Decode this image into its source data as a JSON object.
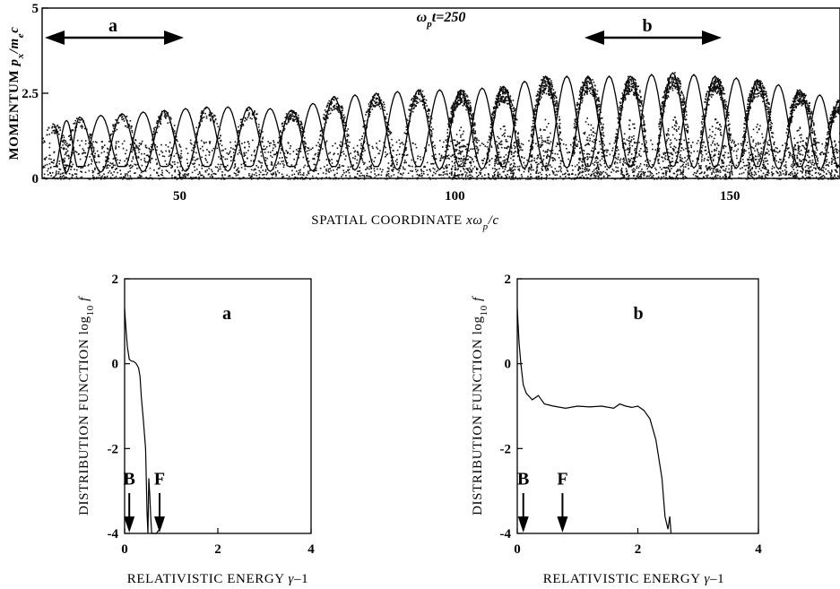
{
  "chart_data": [
    {
      "type": "scatter",
      "panel": "top",
      "annotation_time": "ω_p t=250",
      "xlabel": "SPATIAL COORDINATE xω_p/c",
      "ylabel": "MOMENTUM p_x/m_e c",
      "xlim": [
        25,
        170
      ],
      "ylim": [
        0,
        5
      ],
      "x_ticks": [
        "50",
        "100",
        "150"
      ],
      "y_ticks": [
        "0",
        "2.5",
        "5"
      ],
      "grid": false,
      "regions": [
        {
          "label": "a",
          "x_start": 25,
          "x_end": 50
        },
        {
          "label": "b",
          "x_start": 125,
          "x_end": 145
        }
      ],
      "wave_crest_positions": [
        27,
        31.8,
        39.5,
        47.2,
        54.9,
        62.6,
        70.3,
        78,
        85.7,
        93.4,
        101.1,
        108.8,
        116.5,
        124.2,
        131.9,
        139.6,
        147.3,
        155,
        162.7,
        170
      ],
      "wave_crest_amplitudes": [
        1.6,
        1.8,
        1.9,
        2.0,
        2.1,
        2.1,
        2.0,
        2.4,
        2.5,
        2.6,
        2.6,
        2.7,
        3.0,
        3.0,
        3.0,
        3.1,
        3.0,
        2.9,
        2.6,
        2.3
      ]
    },
    {
      "type": "line",
      "panel": "a",
      "panel_label": "a",
      "xlabel": "RELATIVISTIC ENERGY γ-1",
      "ylabel": "DISTRIBUTION FUNCTION log10 f",
      "xlim": [
        0,
        4
      ],
      "ylim": [
        -4,
        2
      ],
      "x_ticks": [
        "0",
        "2",
        "4"
      ],
      "y_ticks": [
        "-4",
        "-2",
        "0",
        "2"
      ],
      "markers": [
        {
          "label": "B",
          "x": 0.1
        },
        {
          "label": "F",
          "x": 0.75
        }
      ],
      "series": [
        {
          "x": [
            0.0,
            0.03,
            0.06,
            0.1,
            0.15,
            0.2,
            0.25,
            0.3,
            0.33,
            0.36,
            0.4,
            0.45,
            0.48,
            0.5,
            0.52,
            0.54,
            0.56,
            0.58,
            0.62,
            0.68,
            0.75
          ],
          "y": [
            1.3,
            0.8,
            0.4,
            0.1,
            0.06,
            0.05,
            0.0,
            -0.1,
            -0.3,
            -0.8,
            -1.3,
            -2.0,
            -3.5,
            -4.0,
            -2.7,
            -3.1,
            -3.6,
            -4.0,
            -4.0,
            -4.0,
            -3.9
          ]
        }
      ]
    },
    {
      "type": "line",
      "panel": "b",
      "panel_label": "b",
      "xlabel": "RELATIVISTIC ENERGY γ-1",
      "ylabel": "DISTRIBUTION FUNCTION log10 f",
      "xlim": [
        0,
        4
      ],
      "ylim": [
        -4,
        2
      ],
      "x_ticks": [
        "0",
        "2",
        "4"
      ],
      "y_ticks": [
        "-4",
        "-2",
        "0",
        "2"
      ],
      "markers": [
        {
          "label": "B",
          "x": 0.1
        },
        {
          "label": "F",
          "x": 0.75
        }
      ],
      "series": [
        {
          "x": [
            0.0,
            0.03,
            0.06,
            0.1,
            0.15,
            0.25,
            0.35,
            0.45,
            0.6,
            0.8,
            1.0,
            1.2,
            1.4,
            1.6,
            1.7,
            1.8,
            1.9,
            2.0,
            2.1,
            2.2,
            2.3,
            2.4,
            2.45,
            2.5,
            2.53,
            2.55
          ],
          "y": [
            1.3,
            0.5,
            0.0,
            -0.5,
            -0.7,
            -0.85,
            -0.75,
            -0.95,
            -1.0,
            -1.05,
            -1.0,
            -1.02,
            -1.0,
            -1.05,
            -0.95,
            -1.0,
            -1.03,
            -1.0,
            -1.1,
            -1.3,
            -1.8,
            -2.7,
            -3.6,
            -3.9,
            -3.6,
            -4.0
          ]
        }
      ]
    }
  ]
}
